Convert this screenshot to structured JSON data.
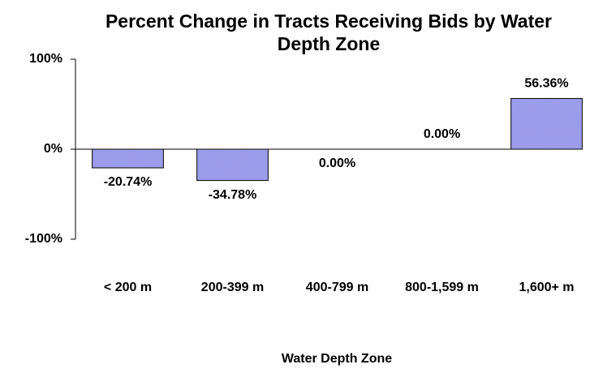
{
  "chart_data": {
    "type": "bar",
    "title": "Percent Change in Tracts Receiving Bids by Water Depth Zone",
    "x_label": "Water Depth Zone",
    "categories": [
      "< 200 m",
      "200-399 m",
      "400-799 m",
      "800-1,599 m",
      "1,600+ m"
    ],
    "values": [
      -20.74,
      -34.78,
      -0.0,
      0.0,
      56.36
    ],
    "value_labels": [
      "-20.74%",
      "-34.78%",
      "0.00%",
      "0.00%",
      "56.36%"
    ],
    "color": "#a3a3f0",
    "ylim": [
      -100,
      100
    ],
    "yticks": [
      {
        "value": -100,
        "label": "-100%"
      },
      {
        "value": 0,
        "label": "0%"
      },
      {
        "value": 100,
        "label": "100%"
      }
    ]
  }
}
